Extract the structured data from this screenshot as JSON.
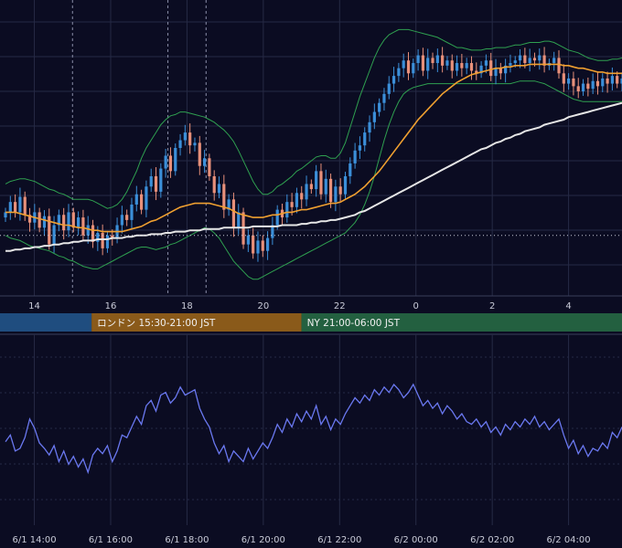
{
  "colors": {
    "background": "#0b0c22",
    "grid": "#262a45",
    "candle_up": "#3b8fd9",
    "candle_down": "#e8907a",
    "bollinger": "#2fa050",
    "ma_fast": "#f0a030",
    "ma_slow": "#e6e6e6",
    "oscillator": "#6a78f0",
    "session_tokyo": "#1f4d7f",
    "session_london": "#8a5a1a",
    "session_ny": "#236040"
  },
  "sessions": [
    {
      "name": "tokyo",
      "label": "",
      "start_hour": 9,
      "end_hour": 15.5
    },
    {
      "name": "london",
      "label": "ロンドン 15:30-21:00 JST",
      "start_hour": 15.5,
      "end_hour": 21
    },
    {
      "name": "ny",
      "label": "NY 21:00-06:00 JST",
      "start_hour": 21,
      "end_hour": 30
    }
  ],
  "chart_data": [
    {
      "type": "candlestick",
      "title": "",
      "x_start_hour": 13.1,
      "x_end_hour": 29.4,
      "x_tick_labels": [
        "14",
        "16",
        "18",
        "20",
        "22",
        "0",
        "2",
        "4"
      ],
      "x_tick_hours": [
        14,
        16,
        18,
        20,
        22,
        24,
        26,
        28
      ],
      "marker_hours": [
        15,
        17.5,
        18.5
      ],
      "grid": true,
      "series": [
        {
          "name": "",
          "kind": "price",
          "close": [
            0.3,
            0.38,
            0.3,
            0.42,
            0.28,
            0.22,
            0.3,
            0.18,
            0.27,
            0.05,
            0.2,
            0.28,
            0.16,
            0.3,
            0.18,
            0.26,
            0.12,
            0.2,
            0.07,
            0.14,
            0.02,
            0.12,
            0.1,
            0.2,
            0.28,
            0.24,
            0.36,
            0.44,
            0.32,
            0.5,
            0.58,
            0.46,
            0.64,
            0.74,
            0.62,
            0.8,
            0.86,
            0.92,
            0.82,
            0.84,
            0.66,
            0.72,
            0.58,
            0.45,
            0.52,
            0.32,
            0.4,
            0.18,
            0.3,
            0.05,
            0.12,
            -0.02,
            0.08,
            0.0,
            0.1,
            0.2,
            0.32,
            0.26,
            0.38,
            0.34,
            0.45,
            0.4,
            0.52,
            0.48,
            0.62,
            0.44,
            0.56,
            0.38,
            0.5,
            0.44,
            0.58,
            0.68,
            0.78,
            0.82,
            0.92,
            1.0,
            1.08,
            1.15,
            1.22,
            1.3,
            1.36,
            1.42,
            1.48,
            1.38,
            1.46,
            1.52,
            1.4,
            1.5,
            1.46,
            1.52,
            1.44,
            1.48,
            1.4,
            1.46,
            1.42,
            1.46,
            1.4,
            1.38,
            1.44,
            1.48,
            1.36,
            1.42,
            1.38,
            1.44,
            1.46,
            1.48,
            1.52,
            1.46,
            1.5,
            1.48,
            1.52,
            1.44,
            1.46,
            1.5,
            1.38,
            1.3,
            1.34,
            1.28,
            1.24,
            1.3,
            1.26,
            1.32,
            1.28,
            1.34,
            1.3,
            1.36,
            1.3,
            1.34
          ]
        },
        {
          "name": "",
          "kind": "bollinger_upper",
          "values": [
            0.52,
            0.54,
            0.55,
            0.56,
            0.56,
            0.55,
            0.54,
            0.52,
            0.5,
            0.48,
            0.47,
            0.45,
            0.44,
            0.42,
            0.4,
            0.4,
            0.4,
            0.4,
            0.39,
            0.37,
            0.35,
            0.33,
            0.34,
            0.36,
            0.4,
            0.46,
            0.54,
            0.62,
            0.72,
            0.8,
            0.86,
            0.92,
            0.98,
            1.02,
            1.05,
            1.06,
            1.08,
            1.08,
            1.07,
            1.06,
            1.05,
            1.04,
            1.02,
            1.0,
            0.97,
            0.94,
            0.9,
            0.85,
            0.78,
            0.7,
            0.62,
            0.54,
            0.48,
            0.44,
            0.44,
            0.46,
            0.5,
            0.52,
            0.55,
            0.58,
            0.62,
            0.64,
            0.67,
            0.7,
            0.73,
            0.74,
            0.74,
            0.72,
            0.72,
            0.76,
            0.84,
            0.96,
            1.08,
            1.2,
            1.3,
            1.4,
            1.5,
            1.58,
            1.64,
            1.68,
            1.7,
            1.72,
            1.72,
            1.72,
            1.71,
            1.7,
            1.69,
            1.68,
            1.67,
            1.66,
            1.64,
            1.62,
            1.6,
            1.58,
            1.58,
            1.57,
            1.56,
            1.56,
            1.56,
            1.57,
            1.57,
            1.58,
            1.58,
            1.58,
            1.59,
            1.6,
            1.6,
            1.61,
            1.62,
            1.62,
            1.62,
            1.63,
            1.63,
            1.62,
            1.6,
            1.58,
            1.56,
            1.55,
            1.54,
            1.52,
            1.5,
            1.49,
            1.48,
            1.48,
            1.48,
            1.49,
            1.49,
            1.5
          ]
        },
        {
          "name": "",
          "kind": "bollinger_lower",
          "values": [
            0.12,
            0.1,
            0.09,
            0.08,
            0.06,
            0.04,
            0.03,
            0.02,
            0.01,
            0.0,
            -0.02,
            -0.04,
            -0.05,
            -0.07,
            -0.08,
            -0.1,
            -0.12,
            -0.13,
            -0.14,
            -0.14,
            -0.12,
            -0.1,
            -0.08,
            -0.06,
            -0.04,
            -0.02,
            0.0,
            0.02,
            0.03,
            0.03,
            0.02,
            0.01,
            0.02,
            0.03,
            0.05,
            0.06,
            0.08,
            0.1,
            0.12,
            0.14,
            0.16,
            0.18,
            0.17,
            0.14,
            0.1,
            0.04,
            -0.02,
            -0.08,
            -0.12,
            -0.16,
            -0.2,
            -0.22,
            -0.22,
            -0.2,
            -0.18,
            -0.16,
            -0.14,
            -0.12,
            -0.1,
            -0.08,
            -0.06,
            -0.04,
            -0.02,
            0.0,
            0.02,
            0.04,
            0.06,
            0.08,
            0.1,
            0.12,
            0.14,
            0.18,
            0.22,
            0.28,
            0.36,
            0.46,
            0.58,
            0.72,
            0.86,
            0.98,
            1.08,
            1.16,
            1.22,
            1.25,
            1.27,
            1.28,
            1.29,
            1.3,
            1.3,
            1.3,
            1.3,
            1.3,
            1.3,
            1.3,
            1.3,
            1.3,
            1.3,
            1.3,
            1.3,
            1.3,
            1.3,
            1.3,
            1.3,
            1.3,
            1.3,
            1.31,
            1.32,
            1.32,
            1.32,
            1.32,
            1.31,
            1.3,
            1.28,
            1.26,
            1.24,
            1.22,
            1.2,
            1.18,
            1.17,
            1.16,
            1.16,
            1.16,
            1.16,
            1.16,
            1.16,
            1.16,
            1.16,
            1.16
          ]
        },
        {
          "name": "",
          "kind": "ma_fast",
          "values": [
            0.3,
            0.3,
            0.3,
            0.29,
            0.28,
            0.27,
            0.26,
            0.25,
            0.24,
            0.23,
            0.22,
            0.21,
            0.2,
            0.2,
            0.19,
            0.18,
            0.18,
            0.17,
            0.16,
            0.16,
            0.15,
            0.15,
            0.15,
            0.15,
            0.15,
            0.16,
            0.17,
            0.18,
            0.19,
            0.21,
            0.23,
            0.24,
            0.26,
            0.28,
            0.3,
            0.32,
            0.34,
            0.35,
            0.36,
            0.37,
            0.37,
            0.37,
            0.37,
            0.36,
            0.35,
            0.34,
            0.33,
            0.31,
            0.29,
            0.28,
            0.27,
            0.26,
            0.26,
            0.26,
            0.27,
            0.28,
            0.28,
            0.29,
            0.3,
            0.3,
            0.31,
            0.32,
            0.32,
            0.33,
            0.34,
            0.35,
            0.36,
            0.37,
            0.37,
            0.38,
            0.4,
            0.42,
            0.44,
            0.47,
            0.5,
            0.54,
            0.58,
            0.62,
            0.67,
            0.72,
            0.77,
            0.82,
            0.87,
            0.92,
            0.97,
            1.02,
            1.06,
            1.1,
            1.14,
            1.18,
            1.22,
            1.25,
            1.28,
            1.31,
            1.33,
            1.35,
            1.37,
            1.38,
            1.39,
            1.4,
            1.41,
            1.42,
            1.42,
            1.43,
            1.43,
            1.44,
            1.44,
            1.44,
            1.45,
            1.45,
            1.45,
            1.45,
            1.45,
            1.45,
            1.45,
            1.44,
            1.44,
            1.43,
            1.42,
            1.42,
            1.41,
            1.4,
            1.39,
            1.39,
            1.38,
            1.38,
            1.38,
            1.38
          ]
        },
        {
          "name": "",
          "kind": "ma_slow",
          "values": [
            0.0,
            0.0,
            0.01,
            0.01,
            0.02,
            0.02,
            0.03,
            0.03,
            0.04,
            0.04,
            0.05,
            0.05,
            0.06,
            0.06,
            0.07,
            0.07,
            0.08,
            0.08,
            0.08,
            0.09,
            0.09,
            0.09,
            0.1,
            0.1,
            0.1,
            0.11,
            0.11,
            0.12,
            0.12,
            0.12,
            0.13,
            0.13,
            0.13,
            0.14,
            0.14,
            0.15,
            0.15,
            0.15,
            0.16,
            0.16,
            0.16,
            0.17,
            0.17,
            0.17,
            0.17,
            0.18,
            0.18,
            0.18,
            0.18,
            0.18,
            0.18,
            0.19,
            0.19,
            0.19,
            0.19,
            0.19,
            0.19,
            0.2,
            0.2,
            0.2,
            0.2,
            0.21,
            0.21,
            0.22,
            0.22,
            0.23,
            0.23,
            0.24,
            0.24,
            0.25,
            0.26,
            0.27,
            0.28,
            0.3,
            0.31,
            0.33,
            0.35,
            0.37,
            0.39,
            0.41,
            0.43,
            0.45,
            0.47,
            0.49,
            0.51,
            0.53,
            0.55,
            0.57,
            0.59,
            0.61,
            0.63,
            0.65,
            0.67,
            0.69,
            0.71,
            0.73,
            0.75,
            0.77,
            0.79,
            0.8,
            0.82,
            0.84,
            0.85,
            0.87,
            0.88,
            0.9,
            0.91,
            0.93,
            0.94,
            0.95,
            0.96,
            0.98,
            0.99,
            1.0,
            1.01,
            1.02,
            1.04,
            1.05,
            1.06,
            1.07,
            1.08,
            1.09,
            1.1,
            1.11,
            1.12,
            1.13,
            1.14,
            1.15
          ]
        }
      ],
      "reference_level": 0.12
    },
    {
      "type": "line",
      "title": "",
      "x_tick_labels": [
        "6/1 14:00",
        "6/1 16:00",
        "6/1 18:00",
        "6/1 20:00",
        "6/1 22:00",
        "6/2 00:00",
        "6/2 02:00",
        "6/2 04:00"
      ],
      "x_tick_hours": [
        14,
        16,
        18,
        20,
        22,
        24,
        26,
        28
      ],
      "grid": true,
      "series": [
        {
          "name": "",
          "values": [
            45,
            50,
            38,
            40,
            48,
            62,
            55,
            44,
            40,
            35,
            42,
            30,
            38,
            28,
            34,
            26,
            32,
            22,
            35,
            40,
            36,
            42,
            30,
            38,
            50,
            48,
            56,
            64,
            58,
            72,
            76,
            68,
            80,
            82,
            74,
            78,
            86,
            80,
            82,
            84,
            70,
            62,
            56,
            44,
            36,
            42,
            30,
            38,
            34,
            30,
            40,
            32,
            38,
            44,
            40,
            48,
            58,
            52,
            62,
            56,
            66,
            60,
            68,
            62,
            72,
            58,
            64,
            54,
            62,
            58,
            66,
            72,
            78,
            74,
            80,
            76,
            84,
            80,
            86,
            82,
            88,
            84,
            78,
            82,
            88,
            80,
            72,
            76,
            70,
            74,
            66,
            72,
            68,
            62,
            66,
            60,
            58,
            62,
            56,
            60,
            52,
            56,
            50,
            58,
            54,
            60,
            56,
            62,
            58,
            64,
            56,
            60,
            54,
            58,
            62,
            50,
            40,
            46,
            36,
            42,
            34,
            40,
            38,
            44,
            40,
            52,
            48,
            56
          ]
        }
      ]
    }
  ]
}
